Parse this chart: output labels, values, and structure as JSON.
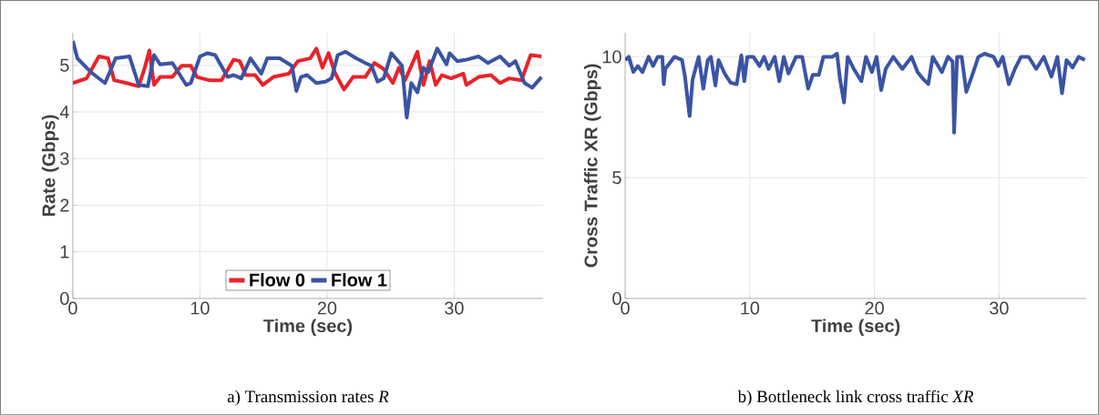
{
  "chart_data": [
    {
      "type": "line",
      "title": "a) Transmission rates *R*",
      "xlabel": "Time (sec)",
      "ylabel": "Rate (Gbps)",
      "xlim": [
        0,
        37
      ],
      "ylim": [
        0,
        5.7
      ],
      "xticks": [
        0,
        10,
        20,
        30
      ],
      "yticks": [
        0,
        1,
        2,
        3,
        4,
        5
      ],
      "grid": true,
      "legend": "bottom",
      "line_style": "solid",
      "marker": "none",
      "series": [
        {
          "name": "Flow 0",
          "color": "#e8232a",
          "x": [
            0.0,
            1.08,
            2.05,
            2.77,
            3.25,
            4.22,
            5.18,
            5.66,
            6.02,
            6.39,
            6.87,
            7.83,
            8.55,
            9.28,
            9.76,
            10.72,
            11.69,
            12.65,
            13.13,
            13.61,
            14.34,
            14.94,
            15.78,
            16.99,
            17.71,
            18.67,
            19.16,
            19.64,
            20.12,
            20.6,
            21.33,
            22.05,
            23.01,
            23.73,
            24.46,
            25.18,
            25.66,
            26.14,
            27.11,
            27.59,
            28.07,
            28.55,
            29.04,
            29.76,
            30.72,
            30.96,
            31.93,
            32.89,
            33.61,
            34.34,
            35.3,
            36.02,
            36.87
          ],
          "values": [
            4.62,
            4.72,
            5.19,
            5.15,
            4.68,
            4.62,
            4.55,
            4.95,
            5.32,
            4.58,
            4.75,
            4.75,
            4.99,
            4.99,
            4.75,
            4.68,
            4.68,
            5.12,
            5.09,
            4.79,
            4.79,
            4.58,
            4.75,
            4.82,
            5.09,
            5.15,
            5.36,
            4.95,
            5.26,
            4.85,
            4.48,
            4.75,
            4.75,
            5.05,
            4.92,
            4.62,
            4.95,
            4.68,
            5.29,
            4.58,
            5.09,
            4.58,
            4.79,
            4.72,
            4.82,
            4.58,
            4.75,
            4.79,
            4.62,
            4.72,
            4.68,
            5.22,
            5.19
          ]
        },
        {
          "name": "Flow 1",
          "color": "#3a54a4",
          "x": [
            0.0,
            0.36,
            1.08,
            1.57,
            2.53,
            3.37,
            4.46,
            5.18,
            5.9,
            6.39,
            6.87,
            7.83,
            8.92,
            9.28,
            10.0,
            10.6,
            11.2,
            12.17,
            12.65,
            13.25,
            13.98,
            14.82,
            15.3,
            16.27,
            17.23,
            17.59,
            17.95,
            18.43,
            19.16,
            19.88,
            20.36,
            20.84,
            21.45,
            22.29,
            23.01,
            23.49,
            23.98,
            24.46,
            25.06,
            25.9,
            26.27,
            26.63,
            27.11,
            27.59,
            27.95,
            28.67,
            29.4,
            29.64,
            30.24,
            30.96,
            31.93,
            32.65,
            33.61,
            34.34,
            34.82,
            35.54,
            36.14,
            36.87
          ],
          "values": [
            5.52,
            5.15,
            4.95,
            4.82,
            4.62,
            5.15,
            5.19,
            4.58,
            4.55,
            5.22,
            5.02,
            5.05,
            4.58,
            4.62,
            5.19,
            5.26,
            5.22,
            4.75,
            4.79,
            4.72,
            5.15,
            4.82,
            5.15,
            5.15,
            4.99,
            4.45,
            4.75,
            4.79,
            4.62,
            4.65,
            4.72,
            5.22,
            5.29,
            5.15,
            5.05,
            4.99,
            4.65,
            4.72,
            5.26,
            4.99,
            3.88,
            4.62,
            4.42,
            4.95,
            4.85,
            5.36,
            5.02,
            5.26,
            5.09,
            5.12,
            5.19,
            5.05,
            5.19,
            4.99,
            5.09,
            4.62,
            4.52,
            4.75
          ]
        }
      ]
    },
    {
      "type": "line",
      "title": "b) Bottleneck link cross traffic *XR*",
      "xlabel": "Time (sec)",
      "ylabel": "Cross Traffic XR (Gbps)",
      "xlim": [
        0,
        37
      ],
      "ylim": [
        0,
        11
      ],
      "xticks": [
        0,
        10,
        20,
        30
      ],
      "yticks": [
        0,
        5,
        10
      ],
      "grid": true,
      "line_style": "solid",
      "marker": "none",
      "series": [
        {
          "color": "#3a54a4",
          "x": [
            0.0,
            0.29,
            0.66,
            1.02,
            1.39,
            1.88,
            2.24,
            2.61,
            2.98,
            3.1,
            3.22,
            3.95,
            4.56,
            4.8,
            5.17,
            5.41,
            5.9,
            6.27,
            6.63,
            6.88,
            7.24,
            7.49,
            7.98,
            8.46,
            8.95,
            9.32,
            9.56,
            9.8,
            10.29,
            10.78,
            11.15,
            11.51,
            12.0,
            12.37,
            12.73,
            13.1,
            13.71,
            14.2,
            14.68,
            15.05,
            15.54,
            15.9,
            16.63,
            17.0,
            17.24,
            17.56,
            17.85,
            18.34,
            18.95,
            19.32,
            19.8,
            20.17,
            20.54,
            20.9,
            21.51,
            22.24,
            22.98,
            23.46,
            23.95,
            24.32,
            24.68,
            25.41,
            25.9,
            26.27,
            26.39,
            26.63,
            27.0,
            27.37,
            27.85,
            28.34,
            28.83,
            29.56,
            29.93,
            30.29,
            30.78,
            31.27,
            31.76,
            32.37,
            32.98,
            33.59,
            34.2,
            34.68,
            35.05,
            35.41,
            35.9,
            36.39,
            36.88
          ],
          "values": [
            9.87,
            10.0,
            9.37,
            9.62,
            9.37,
            10.0,
            9.62,
            10.0,
            10.0,
            8.87,
            9.5,
            10.0,
            9.87,
            9.18,
            7.55,
            9.06,
            10.0,
            8.68,
            9.87,
            10.0,
            8.81,
            9.87,
            9.31,
            8.93,
            8.87,
            10.06,
            8.99,
            10.0,
            10.0,
            9.62,
            10.0,
            9.5,
            10.0,
            8.99,
            10.0,
            9.31,
            10.0,
            10.0,
            8.68,
            9.25,
            9.25,
            10.0,
            10.0,
            10.13,
            9.06,
            8.11,
            10.0,
            9.5,
            8.99,
            10.0,
            9.37,
            10.0,
            8.62,
            9.5,
            10.0,
            9.5,
            10.0,
            9.37,
            9.06,
            8.87,
            10.0,
            9.37,
            10.0,
            9.81,
            6.86,
            10.0,
            10.0,
            8.55,
            9.25,
            10.0,
            10.13,
            10.0,
            9.62,
            10.0,
            8.87,
            9.5,
            10.0,
            10.0,
            9.5,
            10.0,
            9.18,
            10.0,
            8.49,
            9.87,
            9.56,
            10.0,
            9.87
          ]
        }
      ]
    }
  ]
}
